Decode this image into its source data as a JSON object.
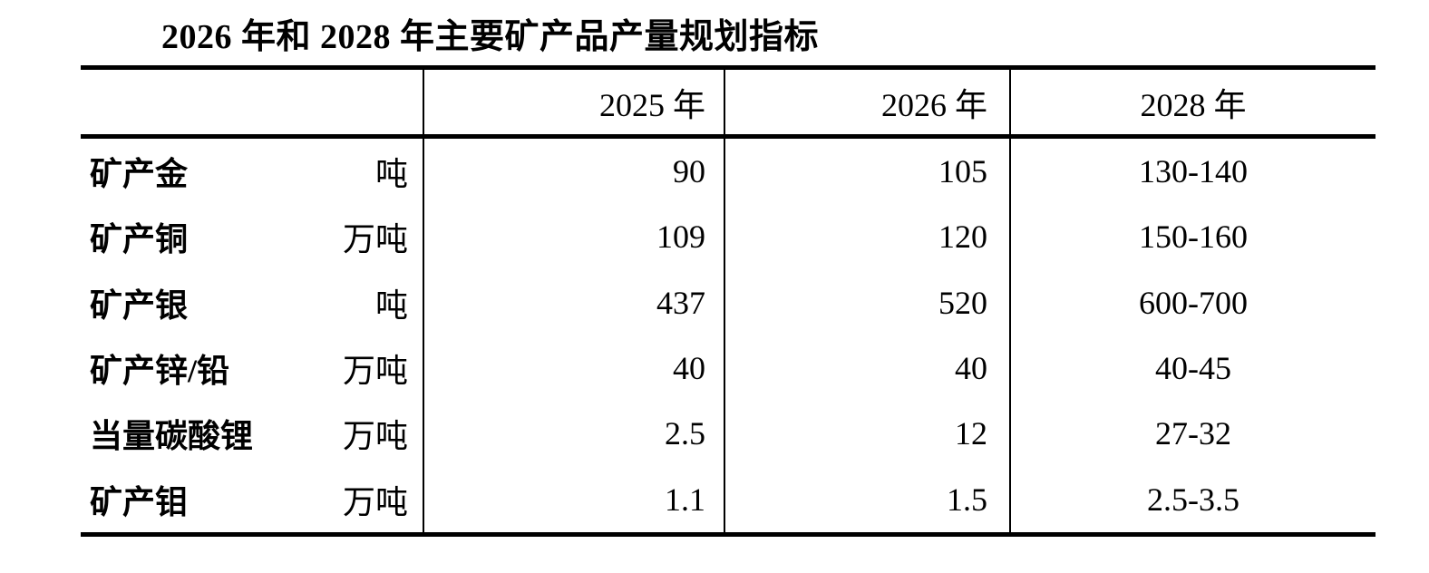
{
  "title": "2026 年和 2028 年主要矿产品产量规划指标",
  "table": {
    "header": {
      "product_col": "",
      "y2025": "2025 年",
      "y2026": "2026 年",
      "y2028": "2028 年"
    },
    "rows": [
      {
        "name": "矿产金",
        "unit": "吨",
        "y2025": "90",
        "y2026": "105",
        "y2028": "130-140"
      },
      {
        "name": "矿产铜",
        "unit": "万吨",
        "y2025": "109",
        "y2026": "120",
        "y2028": "150-160"
      },
      {
        "name": "矿产银",
        "unit": "吨",
        "y2025": "437",
        "y2026": "520",
        "y2028": "600-700"
      },
      {
        "name": "矿产锌/铅",
        "unit": "万吨",
        "y2025": "40",
        "y2026": "40",
        "y2028": "40-45"
      },
      {
        "name": "当量碳酸锂",
        "unit": "万吨",
        "y2025": "2.5",
        "y2026": "12",
        "y2028": "27-32"
      },
      {
        "name": "矿产钼",
        "unit": "万吨",
        "y2025": "1.1",
        "y2026": "1.5",
        "y2028": "2.5-3.5"
      }
    ],
    "colors": {
      "text": "#000000",
      "background": "#ffffff",
      "rule": "#000000"
    }
  }
}
